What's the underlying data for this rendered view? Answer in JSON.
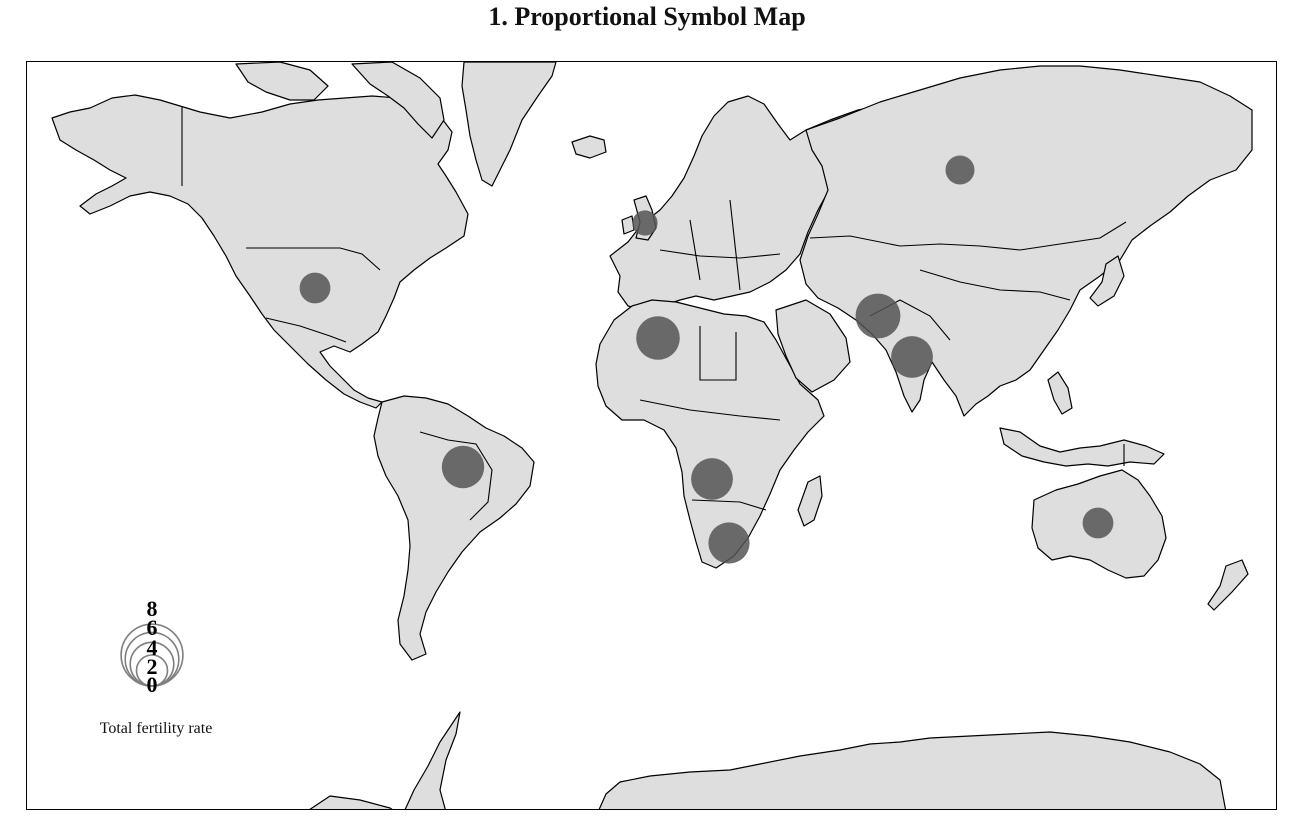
{
  "title": "1. Proportional Symbol Map",
  "legend": {
    "title": "Total fertility rate",
    "ticks": [
      "8",
      "6",
      "4",
      "2",
      "0"
    ],
    "tick_values": [
      8,
      6,
      4,
      2,
      0
    ]
  },
  "colors": {
    "land": "#dedede",
    "symbol": "#555555",
    "legend_circle": "#808080",
    "outline": "#000000"
  },
  "map_data": {
    "projection": "Mercator",
    "variable": "Total fertility rate",
    "symbols": [
      {
        "region": "United States",
        "value": 1.8
      },
      {
        "region": "Brazil",
        "value": 3.4
      },
      {
        "region": "United Kingdom",
        "value": 1.2
      },
      {
        "region": "Algeria",
        "value": 3.6
      },
      {
        "region": "Russia",
        "value": 1.6
      },
      {
        "region": "Afghanistan",
        "value": 3.8
      },
      {
        "region": "India",
        "value": 3.3
      },
      {
        "region": "Angola",
        "value": 3.3
      },
      {
        "region": "South Africa",
        "value": 3.2
      },
      {
        "region": "Australia",
        "value": 1.8
      }
    ]
  }
}
